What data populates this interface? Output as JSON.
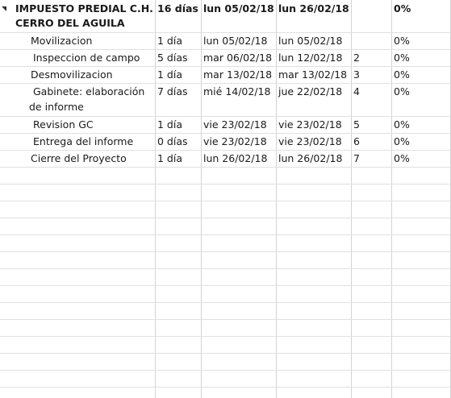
{
  "summary": {
    "name_line1": "IMPUESTO PREDIAL C.H.",
    "name_line2": "CERRO DEL AGUILA",
    "duration": "16 días",
    "start": "lun 05/02/18",
    "finish": "lun 26/02/18",
    "predecessor": "",
    "complete": "0%"
  },
  "tasks": [
    {
      "name": "Movilizacion",
      "duration": "1 día",
      "start": "lun 05/02/18",
      "finish": "lun 05/02/18",
      "predecessor": "",
      "complete": "0%"
    },
    {
      "name": "Inspeccion de campo",
      "duration": "5 días",
      "start": "mar 06/02/18",
      "finish": "lun 12/02/18",
      "predecessor": "2",
      "complete": "0%"
    },
    {
      "name": "Desmovilizacion",
      "duration": "1 día",
      "start": "mar 13/02/18",
      "finish": "mar 13/02/18",
      "predecessor": "3",
      "complete": "0%"
    },
    {
      "name_line1": "Gabinete: elaboración",
      "name_line2": "de informe",
      "duration": "7 días",
      "start": "mié 14/02/18",
      "finish": "jue 22/02/18",
      "predecessor": "4",
      "complete": "0%"
    },
    {
      "name": "Revision GC",
      "duration": "1 día",
      "start": "vie 23/02/18",
      "finish": "vie 23/02/18",
      "predecessor": "5",
      "complete": "0%"
    },
    {
      "name": "Entrega del informe",
      "duration": "0 días",
      "start": "vie 23/02/18",
      "finish": "vie 23/02/18",
      "predecessor": "6",
      "complete": "0%"
    },
    {
      "name": "Cierre del Proyecto",
      "duration": "1 día",
      "start": "lun 26/02/18",
      "finish": "lun 26/02/18",
      "predecessor": "7",
      "complete": "0%"
    }
  ]
}
